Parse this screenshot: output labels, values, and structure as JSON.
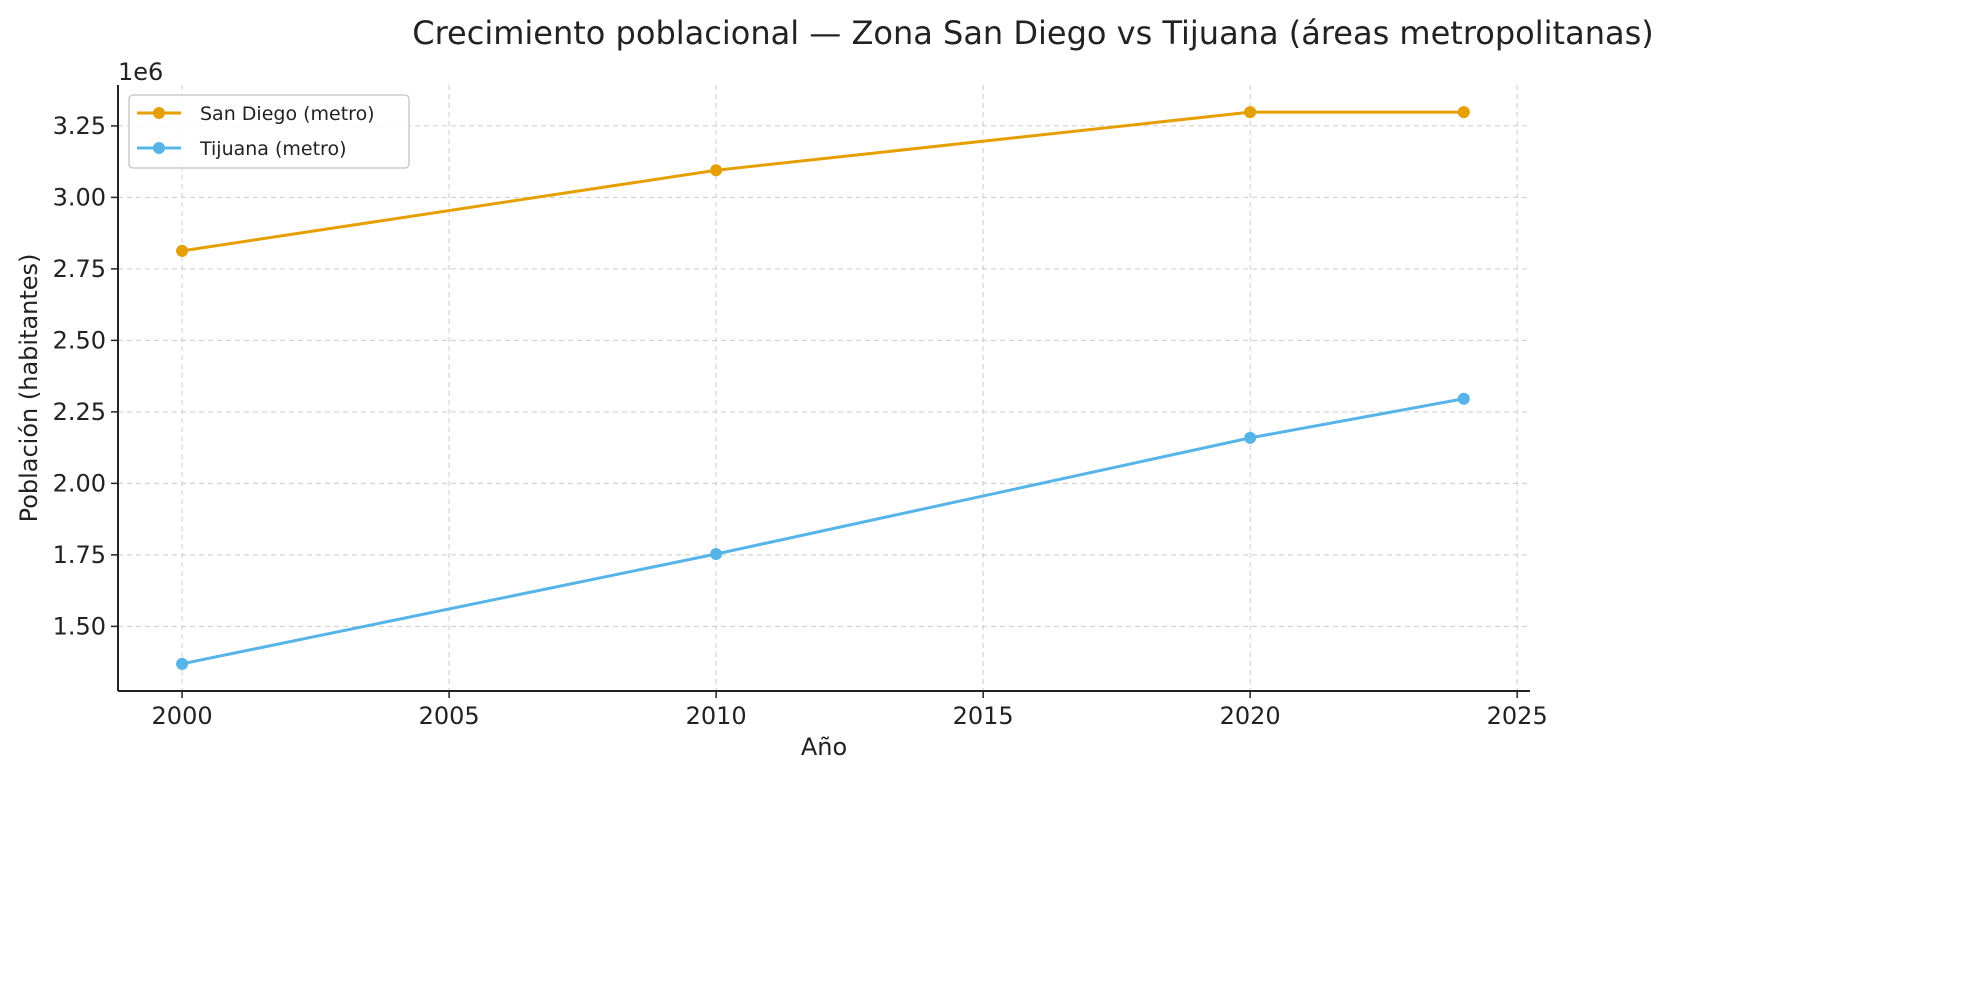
{
  "chart_data": {
    "type": "line",
    "title": "Crecimiento poblacional — Zona San Diego vs Tijuana (áreas metropolitanas)",
    "xlabel": "Año",
    "ylabel": "Población (habitantes)",
    "y_offset_label": "1e6",
    "xlim": [
      1998.8,
      2025.24
    ],
    "ylim": [
      1.274,
      3.393
    ],
    "y_scale": 1000000,
    "xticks": [
      2000,
      2005,
      2010,
      2015,
      2020,
      2025
    ],
    "xtick_labels": [
      "2000",
      "2005",
      "2010",
      "2015",
      "2020",
      "2025"
    ],
    "yticks": [
      1.5,
      1.75,
      2.0,
      2.25,
      2.5,
      2.75,
      3.0,
      3.25
    ],
    "ytick_labels": [
      "1.50",
      "1.75",
      "2.00",
      "2.25",
      "2.50",
      "2.75",
      "3.00",
      "3.25"
    ],
    "grid": true,
    "legend_position": "top-left",
    "x": [
      2000,
      2010,
      2020,
      2024
    ],
    "series": [
      {
        "name": "San Diego (metro)",
        "color": "#E69F00",
        "values": [
          2813000,
          3095000,
          3298000,
          3298000
        ]
      },
      {
        "name": "Tijuana (metro)",
        "color": "#56B4E9",
        "values": [
          1369000,
          1753000,
          2159000,
          2296000
        ]
      }
    ]
  }
}
